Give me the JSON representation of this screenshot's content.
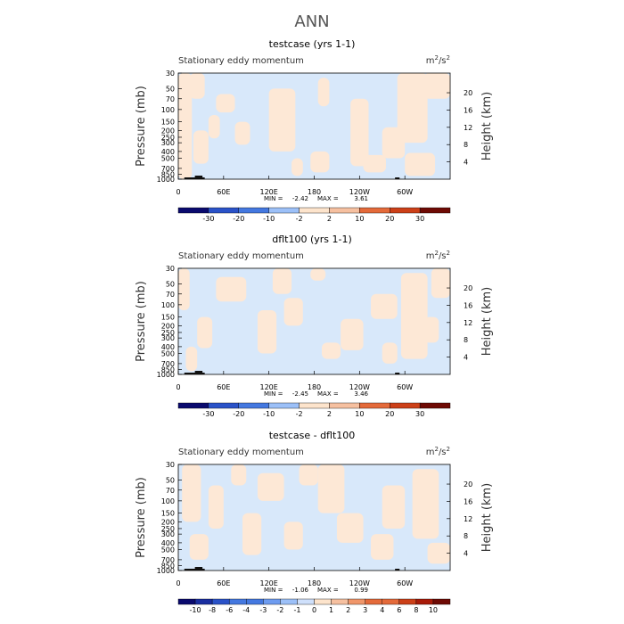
{
  "figure": {
    "title": "ANN"
  },
  "colors": {
    "negative": "#d8e8fa",
    "positive": "#fde8d6",
    "terrain": "#111111",
    "frame": "#000000"
  },
  "colorbar_colors": [
    "#0a0a6e",
    "#1a2ea0",
    "#2a52c8",
    "#4478e0",
    "#6e9cf0",
    "#9cc0f8",
    "#cfe0fb",
    "#fde4cc",
    "#f6c0a0",
    "#f0966a",
    "#e46a3a",
    "#cc4018",
    "#a81a08",
    "#6e0a04"
  ],
  "chart_data": [
    {
      "type": "heatmap",
      "title": "testcase (yrs 1-1)",
      "left_label": "Stationary eddy momentum",
      "units": "m²/s²",
      "units_base": "m",
      "units_mid": "/s",
      "units_sup": "2",
      "xlabel": "",
      "ylabel": "Pressure (mb)",
      "ylabel_right": "Height (km)",
      "x_ticks": [
        "0",
        "60E",
        "120E",
        "180",
        "120W",
        "60W"
      ],
      "x_tick_lons": [
        0,
        60,
        120,
        180,
        240,
        300
      ],
      "xlim": [
        0,
        360
      ],
      "y_ticks": [
        "30",
        "50",
        "70",
        "100",
        "150",
        "200",
        "250",
        "300",
        "400",
        "500",
        "700",
        "850",
        "1000"
      ],
      "y_tick_values": [
        30,
        50,
        70,
        100,
        150,
        200,
        250,
        300,
        400,
        500,
        700,
        850,
        1000
      ],
      "ylim": [
        1000,
        30
      ],
      "log_scale_y": true,
      "y_right_ticks": [
        "20",
        "16",
        "12",
        "8",
        "4"
      ],
      "y_right_values": [
        20,
        16,
        12,
        8,
        4
      ],
      "min_label": "MIN =",
      "min": "-2.42",
      "max_label": "MAX =",
      "max": "3.61",
      "colorbar_labels": [
        "-30",
        "-20",
        "-10",
        "-2",
        "2",
        "10",
        "20",
        "30"
      ],
      "positive_regions": [
        {
          "lon": [
            0,
            18
          ],
          "p": [
            30,
            1000
          ]
        },
        {
          "lon": [
            15,
            35
          ],
          "p": [
            30,
            70
          ]
        },
        {
          "lon": [
            20,
            40
          ],
          "p": [
            200,
            600
          ]
        },
        {
          "lon": [
            40,
            55
          ],
          "p": [
            120,
            260
          ]
        },
        {
          "lon": [
            50,
            75
          ],
          "p": [
            60,
            110
          ]
        },
        {
          "lon": [
            75,
            95
          ],
          "p": [
            150,
            320
          ]
        },
        {
          "lon": [
            120,
            155
          ],
          "p": [
            50,
            400
          ]
        },
        {
          "lon": [
            150,
            165
          ],
          "p": [
            500,
            900
          ]
        },
        {
          "lon": [
            175,
            200
          ],
          "p": [
            400,
            800
          ]
        },
        {
          "lon": [
            185,
            200
          ],
          "p": [
            35,
            90
          ]
        },
        {
          "lon": [
            228,
            252
          ],
          "p": [
            70,
            650
          ]
        },
        {
          "lon": [
            245,
            275
          ],
          "p": [
            450,
            800
          ]
        },
        {
          "lon": [
            270,
            300
          ],
          "p": [
            180,
            500
          ]
        },
        {
          "lon": [
            290,
            330
          ],
          "p": [
            30,
            300
          ]
        },
        {
          "lon": [
            300,
            340
          ],
          "p": [
            420,
            900
          ]
        },
        {
          "lon": [
            325,
            360
          ],
          "p": [
            30,
            70
          ]
        }
      ]
    },
    {
      "type": "heatmap",
      "title": "dflt100 (yrs 1-1)",
      "left_label": "Stationary eddy momentum",
      "units": "m²/s²",
      "units_base": "m",
      "units_mid": "/s",
      "units_sup": "2",
      "xlabel": "",
      "ylabel": "Pressure (mb)",
      "ylabel_right": "Height (km)",
      "x_ticks": [
        "0",
        "60E",
        "120E",
        "180",
        "120W",
        "60W"
      ],
      "x_tick_lons": [
        0,
        60,
        120,
        180,
        240,
        300
      ],
      "xlim": [
        0,
        360
      ],
      "y_ticks": [
        "30",
        "50",
        "70",
        "100",
        "150",
        "200",
        "250",
        "300",
        "400",
        "500",
        "700",
        "850",
        "1000"
      ],
      "y_tick_values": [
        30,
        50,
        70,
        100,
        150,
        200,
        250,
        300,
        400,
        500,
        700,
        850,
        1000
      ],
      "ylim": [
        1000,
        30
      ],
      "log_scale_y": true,
      "y_right_ticks": [
        "20",
        "16",
        "12",
        "8",
        "4"
      ],
      "y_right_values": [
        20,
        16,
        12,
        8,
        4
      ],
      "min_label": "MIN =",
      "min": "-2.45",
      "max_label": "MAX =",
      "max": "3.46",
      "colorbar_labels": [
        "-30",
        "-20",
        "-10",
        "-2",
        "2",
        "10",
        "20",
        "30"
      ],
      "positive_regions": [
        {
          "lon": [
            0,
            15
          ],
          "p": [
            30,
            120
          ]
        },
        {
          "lon": [
            10,
            25
          ],
          "p": [
            400,
            900
          ]
        },
        {
          "lon": [
            25,
            45
          ],
          "p": [
            150,
            420
          ]
        },
        {
          "lon": [
            50,
            90
          ],
          "p": [
            40,
            90
          ]
        },
        {
          "lon": [
            105,
            130
          ],
          "p": [
            120,
            500
          ]
        },
        {
          "lon": [
            125,
            150
          ],
          "p": [
            30,
            70
          ]
        },
        {
          "lon": [
            140,
            165
          ],
          "p": [
            80,
            200
          ]
        },
        {
          "lon": [
            175,
            195
          ],
          "p": [
            30,
            45
          ]
        },
        {
          "lon": [
            190,
            215
          ],
          "p": [
            350,
            600
          ]
        },
        {
          "lon": [
            215,
            245
          ],
          "p": [
            160,
            450
          ]
        },
        {
          "lon": [
            255,
            290
          ],
          "p": [
            70,
            160
          ]
        },
        {
          "lon": [
            270,
            290
          ],
          "p": [
            350,
            700
          ]
        },
        {
          "lon": [
            295,
            330
          ],
          "p": [
            35,
            600
          ]
        },
        {
          "lon": [
            325,
            345
          ],
          "p": [
            150,
            350
          ]
        },
        {
          "lon": [
            335,
            360
          ],
          "p": [
            30,
            80
          ]
        }
      ]
    },
    {
      "type": "heatmap",
      "title": "testcase - dflt100",
      "left_label": "Stationary eddy momentum",
      "units": "m²/s²",
      "units_base": "m",
      "units_mid": "/s",
      "units_sup": "2",
      "xlabel": "",
      "ylabel": "Pressure (mb)",
      "ylabel_right": "Height (km)",
      "x_ticks": [
        "0",
        "60E",
        "120E",
        "180",
        "120W",
        "60W"
      ],
      "x_tick_lons": [
        0,
        60,
        120,
        180,
        240,
        300
      ],
      "xlim": [
        0,
        360
      ],
      "y_ticks": [
        "30",
        "50",
        "70",
        "100",
        "150",
        "200",
        "250",
        "300",
        "400",
        "500",
        "700",
        "850",
        "1000"
      ],
      "y_tick_values": [
        30,
        50,
        70,
        100,
        150,
        200,
        250,
        300,
        400,
        500,
        700,
        850,
        1000
      ],
      "ylim": [
        1000,
        30
      ],
      "log_scale_y": true,
      "y_right_ticks": [
        "20",
        "16",
        "12",
        "8",
        "4"
      ],
      "y_right_values": [
        20,
        16,
        12,
        8,
        4
      ],
      "min_label": "MIN =",
      "min": "-1.06",
      "max_label": "MAX =",
      "max": "0.99",
      "colorbar_labels": [
        "-10",
        "-8",
        "-6",
        "-4",
        "-3",
        "-2",
        "-1",
        "0",
        "1",
        "2",
        "3",
        "4",
        "6",
        "8",
        "10"
      ],
      "positive_regions": [
        {
          "lon": [
            5,
            30
          ],
          "p": [
            30,
            200
          ]
        },
        {
          "lon": [
            15,
            40
          ],
          "p": [
            300,
            700
          ]
        },
        {
          "lon": [
            40,
            60
          ],
          "p": [
            60,
            250
          ]
        },
        {
          "lon": [
            70,
            90
          ],
          "p": [
            30,
            60
          ]
        },
        {
          "lon": [
            85,
            110
          ],
          "p": [
            150,
            600
          ]
        },
        {
          "lon": [
            105,
            140
          ],
          "p": [
            40,
            100
          ]
        },
        {
          "lon": [
            140,
            165
          ],
          "p": [
            200,
            500
          ]
        },
        {
          "lon": [
            160,
            185
          ],
          "p": [
            30,
            60
          ]
        },
        {
          "lon": [
            185,
            220
          ],
          "p": [
            30,
            150
          ]
        },
        {
          "lon": [
            210,
            245
          ],
          "p": [
            150,
            400
          ]
        },
        {
          "lon": [
            255,
            285
          ],
          "p": [
            300,
            700
          ]
        },
        {
          "lon": [
            270,
            300
          ],
          "p": [
            60,
            250
          ]
        },
        {
          "lon": [
            310,
            345
          ],
          "p": [
            35,
            350
          ]
        },
        {
          "lon": [
            330,
            360
          ],
          "p": [
            400,
            800
          ]
        }
      ]
    }
  ]
}
